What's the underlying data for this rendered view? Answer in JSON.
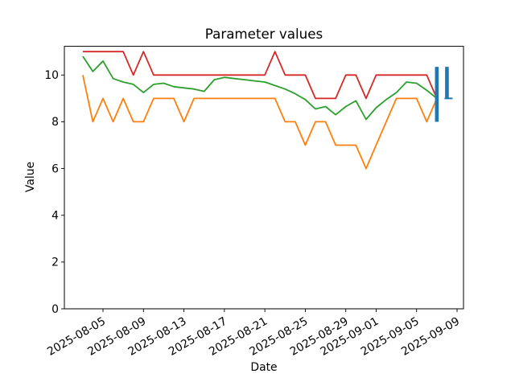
{
  "chart_data": {
    "type": "line",
    "title": "Parameter values",
    "xlabel": "Date",
    "ylabel": "Value",
    "grid": false,
    "legend": false,
    "ylim": [
      0,
      11.23
    ],
    "x": [
      "2025-08-03",
      "2025-08-04",
      "2025-08-05",
      "2025-08-06",
      "2025-08-07",
      "2025-08-08",
      "2025-08-09",
      "2025-08-10",
      "2025-08-11",
      "2025-08-12",
      "2025-08-13",
      "2025-08-14",
      "2025-08-15",
      "2025-08-16",
      "2025-08-17",
      "2025-08-18",
      "2025-08-19",
      "2025-08-20",
      "2025-08-21",
      "2025-08-22",
      "2025-08-23",
      "2025-08-24",
      "2025-08-25",
      "2025-08-26",
      "2025-08-27",
      "2025-08-28",
      "2025-08-29",
      "2025-08-30",
      "2025-08-31",
      "2025-09-01",
      "2025-09-02",
      "2025-09-03",
      "2025-09-04",
      "2025-09-05",
      "2025-09-06",
      "2025-09-07"
    ],
    "series": [
      {
        "name": "red",
        "color": "#d62728",
        "values": [
          11,
          11,
          11,
          11,
          11,
          10,
          11,
          10,
          10,
          10,
          10,
          10,
          10,
          10,
          10,
          10,
          10,
          10,
          10,
          11,
          10,
          10,
          10,
          9,
          9,
          9,
          10,
          10,
          9,
          10,
          10,
          10,
          10,
          10,
          10,
          9
        ]
      },
      {
        "name": "green",
        "color": "#2ca02c",
        "values": [
          10.8,
          10.15,
          10.6,
          9.85,
          9.7,
          9.6,
          9.25,
          9.6,
          9.65,
          9.5,
          9.45,
          9.4,
          9.3,
          9.8,
          9.9,
          9.85,
          9.8,
          9.75,
          9.7,
          9.55,
          9.4,
          9.2,
          8.95,
          8.55,
          8.65,
          8.3,
          8.65,
          8.9,
          8.1,
          8.6,
          8.95,
          9.25,
          9.7,
          9.65,
          9.35,
          9.0
        ]
      },
      {
        "name": "orange",
        "color": "#ff7f0e",
        "values": [
          10,
          8,
          9,
          8,
          9,
          8,
          8,
          9,
          9,
          9,
          8,
          9,
          9,
          9,
          9,
          9,
          9,
          9,
          9,
          9,
          8,
          8,
          7,
          8,
          8,
          7,
          7,
          7,
          6,
          7,
          8,
          9,
          9,
          9,
          8,
          9
        ]
      }
    ],
    "range_bars": [
      {
        "date": "2025-09-07",
        "low": 8,
        "high": 10.35,
        "color": "#1f77b4"
      },
      {
        "date": "2025-09-08",
        "low": 9,
        "high": 10.35,
        "color": "#1f77b4",
        "cap_value": 9
      }
    ],
    "xticks": [
      "2025-08-05",
      "2025-08-09",
      "2025-08-13",
      "2025-08-17",
      "2025-08-21",
      "2025-08-25",
      "2025-08-29",
      "2025-09-01",
      "2025-09-05",
      "2025-09-09"
    ],
    "yticks": [
      "0",
      "2",
      "4",
      "6",
      "8",
      "10"
    ]
  }
}
